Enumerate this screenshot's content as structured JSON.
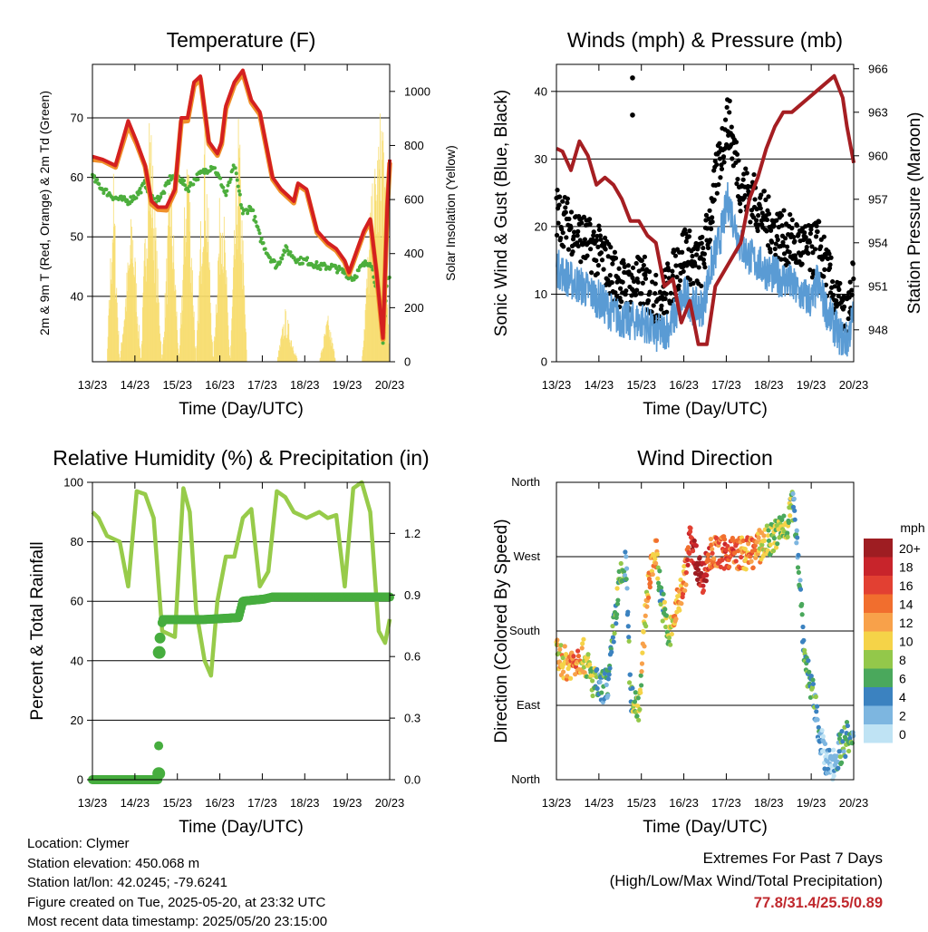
{
  "panels": [
    {
      "id": "temperature",
      "title": "Temperature (F)",
      "xlabel": "Time (Day/UTC)",
      "ylabel_left": "2m & 9m T (Red, Orange) & 2m Td (Green)",
      "ylabel_right": "Solar Insolation (Yellow)"
    },
    {
      "id": "winds",
      "title": "Winds (mph) & Pressure (mb)",
      "xlabel": "Time (Day/UTC)",
      "ylabel_left": "Sonic Wind & Gust (Blue, Black)",
      "ylabel_right": "Station Pressure (Maroon)"
    },
    {
      "id": "humidity",
      "title": "Relative Humidity (%) & Precipitation (in)",
      "xlabel": "Time (Day/UTC)",
      "ylabel_left": "Percent & Total Rainfall",
      "ylabel_right": ""
    },
    {
      "id": "direction",
      "title": "Wind Direction",
      "xlabel": "Time (Day/UTC)",
      "ylabel_left": "Direction (Colored By Speed)",
      "ylabel_right": ""
    }
  ],
  "info": {
    "location": "Location: Clymer",
    "elevation": "Station elevation: 450.068 m",
    "latlon": "Station lat/lon: 42.0245; -79.6241",
    "created": "Figure created on Tue, 2025-05-20, at 23:32 UTC",
    "recent": "Most recent data timestamp: 2025/05/20 23:15:00"
  },
  "extremes": {
    "heading": "Extremes For Past 7 Days",
    "subheading": "(High/Low/Max Wind/Total Precipitation)",
    "values": "77.8/31.4/25.5/0.89"
  },
  "colors": {
    "temp_2m": "#d42020",
    "temp_9m": "#f0902a",
    "dewpoint": "#4cae3c",
    "solar": "#f7dc6a",
    "wind": "#5a9bd4",
    "gust": "#000000",
    "pressure": "#a51e22",
    "rh": "#97cb4a",
    "precip": "#46ad3e"
  },
  "chart_data": [
    {
      "type": "line",
      "x_ticks": [
        "13/23",
        "14/23",
        "15/23",
        "16/23",
        "17/23",
        "18/23",
        "19/23",
        "20/23"
      ],
      "x_range_days": [
        13.958,
        20.958
      ],
      "y_left": {
        "range": [
          29,
          79
        ],
        "ticks": [
          40,
          50,
          60,
          70
        ]
      },
      "y_right": {
        "range": [
          0,
          1100
        ],
        "ticks": [
          0,
          200,
          400,
          600,
          800,
          1000
        ]
      },
      "grid_y": true,
      "series": [
        {
          "name": "2m T",
          "axis": "left",
          "x": [
            13.96,
            14.2,
            14.5,
            14.8,
            15.0,
            15.2,
            15.35,
            15.5,
            15.7,
            15.9,
            16.05,
            16.2,
            16.35,
            16.5,
            16.7,
            16.9,
            17.0,
            17.1,
            17.3,
            17.5,
            17.7,
            17.9,
            18.2,
            18.4,
            18.7,
            18.8,
            19.0,
            19.25,
            19.5,
            19.7,
            19.9,
            20.0,
            20.2,
            20.35,
            20.5,
            20.65,
            20.8,
            20.9,
            20.96
          ],
          "y": [
            63.5,
            63,
            62,
            69.5,
            66,
            62,
            56,
            55,
            55,
            58,
            70,
            70,
            76,
            77,
            66,
            64,
            66,
            72,
            76,
            78,
            73,
            71,
            60,
            58,
            56,
            59,
            58,
            51,
            49,
            48,
            46,
            44,
            48,
            51,
            53,
            44,
            33,
            55,
            63
          ]
        },
        {
          "name": "9m T",
          "axis": "left",
          "x": [
            13.96,
            14.2,
            14.5,
            14.8,
            15.0,
            15.2,
            15.35,
            15.5,
            15.7,
            15.9,
            16.05,
            16.2,
            16.35,
            16.5,
            16.7,
            16.9,
            17.0,
            17.1,
            17.3,
            17.5,
            17.7,
            17.9,
            18.2,
            18.4,
            18.7,
            18.8,
            19.0,
            19.25,
            19.5,
            19.7,
            19.9,
            20.0,
            20.2,
            20.35,
            20.5,
            20.65,
            20.8,
            20.9,
            20.96
          ],
          "y": [
            63,
            62.8,
            61.7,
            68.7,
            65.6,
            61.8,
            55.5,
            54.6,
            54.5,
            57.6,
            69.4,
            69.5,
            75.4,
            76.6,
            65.6,
            63.7,
            65.6,
            71.5,
            75.5,
            77.5,
            72.6,
            70.6,
            59.7,
            57.7,
            55.7,
            58.7,
            57.7,
            50.7,
            48.7,
            47.7,
            45.7,
            43.7,
            47.7,
            50.7,
            52.7,
            43.7,
            32.8,
            54.6,
            62.5
          ]
        },
        {
          "name": "2m Td",
          "axis": "left",
          "x": [
            13.96,
            14.2,
            14.5,
            14.8,
            15.0,
            15.2,
            15.4,
            15.6,
            15.8,
            16.0,
            16.2,
            16.4,
            16.6,
            16.8,
            17.0,
            17.1,
            17.3,
            17.5,
            17.7,
            17.9,
            18.1,
            18.3,
            18.5,
            18.8,
            19.0,
            19.3,
            19.6,
            19.9,
            20.1,
            20.3,
            20.5,
            20.7,
            20.8,
            20.9,
            20.96
          ],
          "y": [
            60,
            58,
            56.5,
            56,
            57,
            59,
            56,
            57,
            60,
            60,
            58,
            60,
            61,
            62,
            59,
            57,
            62,
            54,
            55,
            50,
            47,
            45,
            48,
            46,
            46,
            45,
            45,
            44,
            43,
            45,
            46,
            40,
            32,
            43,
            43
          ]
        },
        {
          "name": "Solar Insolation",
          "axis": "right",
          "x": [
            14.3,
            14.45,
            14.6,
            14.9,
            15.1,
            15.3,
            15.6,
            15.8,
            16.0,
            16.2,
            16.4,
            16.6,
            16.8,
            17.0,
            17.2,
            17.4,
            17.6,
            17.8,
            18.3,
            18.5,
            18.8,
            19.3,
            19.5,
            19.7,
            20.3,
            20.5,
            20.8,
            20.95
          ],
          "y": [
            0,
            750,
            0,
            620,
            0,
            1050,
            0,
            780,
            0,
            950,
            0,
            1020,
            0,
            800,
            0,
            980,
            0,
            0,
            0,
            200,
            0,
            0,
            180,
            0,
            0,
            580,
            1050,
            0
          ]
        }
      ]
    },
    {
      "type": "line",
      "x_ticks": [
        "13/23",
        "14/23",
        "15/23",
        "16/23",
        "17/23",
        "18/23",
        "19/23",
        "20/23"
      ],
      "x_range_days": [
        13.958,
        20.958
      ],
      "y_left": {
        "range": [
          0,
          44
        ],
        "ticks": [
          0,
          10,
          20,
          30,
          40
        ]
      },
      "y_right": {
        "range": [
          945.8,
          966.3
        ],
        "ticks": [
          948,
          951,
          954,
          957,
          960,
          963,
          966
        ]
      },
      "grid_y": true,
      "series": [
        {
          "name": "Sonic Wind",
          "axis": "left",
          "x": [
            13.96,
            14.3,
            14.6,
            15.0,
            15.3,
            15.6,
            16.0,
            16.3,
            16.6,
            17.0,
            17.2,
            17.4,
            17.6,
            17.8,
            18.0,
            18.3,
            18.6,
            19.0,
            19.4,
            19.7,
            20.0,
            20.1,
            20.3,
            20.6,
            20.8,
            20.96
          ],
          "y": [
            14,
            12,
            11,
            9,
            7,
            6,
            6,
            4,
            5,
            10,
            8,
            8,
            14,
            18,
            24,
            17,
            15,
            13,
            12,
            10,
            9,
            12,
            8,
            4,
            3,
            7
          ]
        },
        {
          "name": "Gust",
          "axis": "left",
          "x": [
            13.96,
            14.3,
            14.6,
            15.0,
            15.3,
            15.6,
            16.0,
            16.3,
            16.6,
            17.0,
            17.2,
            17.4,
            17.6,
            17.8,
            18.0,
            18.3,
            18.6,
            19.0,
            19.4,
            19.7,
            20.0,
            20.1,
            20.3,
            20.6,
            20.8,
            20.96
          ],
          "y": [
            22,
            20,
            18,
            16,
            13,
            11,
            12,
            9,
            11,
            17,
            14,
            15,
            22,
            30,
            36,
            26,
            24,
            20,
            18,
            17,
            16,
            18,
            14,
            8,
            6,
            12
          ]
        },
        {
          "name": "Station Pressure",
          "axis": "right",
          "x": [
            13.96,
            14.1,
            14.3,
            14.5,
            14.7,
            14.9,
            15.1,
            15.3,
            15.5,
            15.7,
            15.9,
            16.1,
            16.3,
            16.5,
            16.7,
            16.9,
            17.1,
            17.3,
            17.5,
            17.7,
            17.9,
            18.1,
            18.3,
            18.5,
            18.7,
            18.9,
            19.1,
            19.3,
            19.5,
            19.7,
            19.9,
            20.1,
            20.3,
            20.5,
            20.7,
            20.8,
            20.96
          ],
          "y": [
            960.5,
            960.3,
            959,
            961,
            960,
            958,
            958.5,
            958,
            957,
            955.5,
            955.5,
            954.5,
            954,
            951,
            951.5,
            948.5,
            950,
            947,
            947,
            951,
            952,
            953,
            954,
            957,
            958.5,
            960.5,
            962,
            963,
            963,
            963.5,
            964,
            964.5,
            965,
            965.5,
            964,
            962,
            959.5
          ]
        }
      ]
    },
    {
      "type": "line",
      "x_ticks": [
        "13/23",
        "14/23",
        "15/23",
        "16/23",
        "17/23",
        "18/23",
        "19/23",
        "20/23"
      ],
      "x_range_days": [
        13.958,
        20.958
      ],
      "y_left": {
        "range": [
          0,
          100
        ],
        "ticks": [
          0,
          20,
          40,
          60,
          80,
          100
        ]
      },
      "y_right": {
        "range": [
          0,
          1.449
        ],
        "ticks": [
          0.0,
          0.3,
          0.6,
          0.9,
          1.2
        ]
      },
      "grid_y": true,
      "series": [
        {
          "name": "Relative Humidity",
          "axis": "left",
          "x": [
            13.96,
            14.1,
            14.3,
            14.6,
            14.8,
            15.0,
            15.2,
            15.4,
            15.6,
            15.9,
            16.1,
            16.25,
            16.4,
            16.6,
            16.75,
            16.9,
            17.1,
            17.3,
            17.5,
            17.7,
            17.9,
            18.1,
            18.3,
            18.5,
            18.7,
            19.0,
            19.3,
            19.5,
            19.7,
            19.9,
            20.1,
            20.3,
            20.5,
            20.7,
            20.85,
            20.96
          ],
          "y": [
            90,
            88,
            82,
            80,
            65,
            97,
            96,
            88,
            50,
            48,
            98,
            90,
            57,
            40,
            35,
            60,
            75,
            75,
            88,
            91,
            65,
            70,
            97,
            95,
            90,
            88,
            90,
            88,
            89,
            65,
            98,
            100,
            90,
            50,
            46,
            54
          ]
        },
        {
          "name": "Total Precipitation",
          "axis": "right",
          "x": [
            13.96,
            15.5,
            15.5,
            15.6,
            16.5,
            16.55,
            17.4,
            17.5,
            18.0,
            18.2,
            20.96
          ],
          "y": [
            0.0,
            0.0,
            0.03,
            0.78,
            0.78,
            0.78,
            0.79,
            0.87,
            0.88,
            0.89,
            0.89
          ]
        }
      ]
    },
    {
      "type": "scatter",
      "x_ticks": [
        "13/23",
        "14/23",
        "15/23",
        "16/23",
        "17/23",
        "18/23",
        "19/23",
        "20/23"
      ],
      "x_range_days": [
        13.958,
        20.958
      ],
      "y_ticks": [
        "North",
        "East",
        "South",
        "West",
        "North"
      ],
      "y_range_deg": [
        0,
        360
      ],
      "grid_y": true,
      "legend_title": "mph",
      "legend_labels": [
        "20+",
        "18",
        "16",
        "14",
        "12",
        "10",
        "8",
        "6",
        "4",
        "2",
        "0"
      ],
      "legend_colors": [
        "#9e1d22",
        "#c8242b",
        "#e24032",
        "#f16e2e",
        "#f8a14a",
        "#f5d348",
        "#93c84a",
        "#4aa85c",
        "#3b82c0",
        "#7db6e0",
        "#bfe3f4"
      ],
      "legend_placement": "right",
      "series": [
        {
          "name": "Wind Direction",
          "x": [
            13.96,
            14.2,
            14.4,
            14.6,
            14.8,
            15.0,
            15.2,
            15.3,
            15.45,
            15.6,
            15.7,
            15.9,
            16.1,
            16.3,
            16.4,
            16.6,
            16.8,
            17.0,
            17.1,
            17.25,
            17.4,
            17.6,
            17.8,
            18.0,
            18.2,
            18.4,
            18.6,
            18.8,
            19.0,
            19.2,
            19.4,
            19.5,
            19.6,
            19.8,
            20.0,
            20.2,
            20.3,
            20.5,
            20.6,
            20.8,
            20.96
          ],
          "y": [
            150,
            140,
            145,
            150,
            120,
            110,
            120,
            180,
            240,
            260,
            100,
            90,
            230,
            280,
            230,
            170,
            210,
            250,
            290,
            265,
            245,
            275,
            275,
            275,
            275,
            273,
            276,
            285,
            290,
            300,
            310,
            335,
            310,
            150,
            100,
            45,
            20,
            20,
            35,
            50,
            40
          ],
          "speed": [
            10,
            12,
            14,
            10,
            8,
            4,
            6,
            6,
            8,
            4,
            6,
            8,
            12,
            12,
            6,
            8,
            12,
            14,
            16,
            20,
            18,
            14,
            14,
            16,
            14,
            12,
            14,
            10,
            8,
            8,
            8,
            6,
            4,
            6,
            6,
            2,
            2,
            2,
            4,
            6,
            4
          ]
        }
      ]
    }
  ]
}
